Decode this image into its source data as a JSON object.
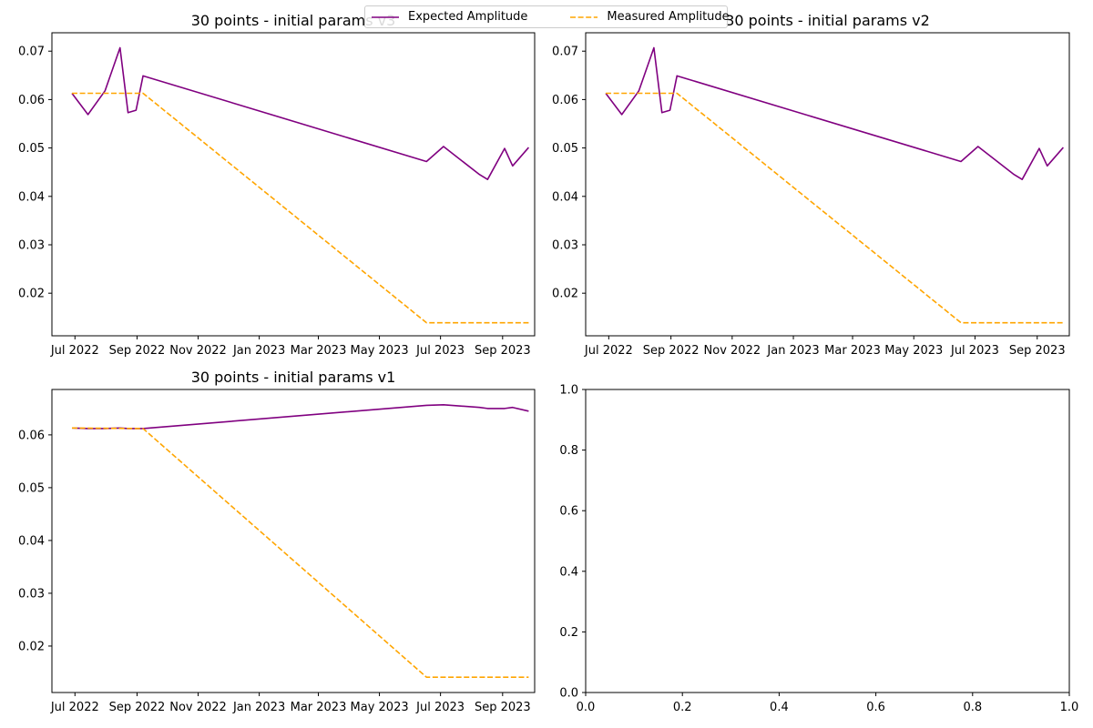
{
  "legend": {
    "expected_label": "Expected Amplitude",
    "measured_label": "Measured Amplitude"
  },
  "colors": {
    "expected": "#800080",
    "measured": "#ffa500"
  },
  "chart_data": [
    {
      "type": "line",
      "title": "30 points - initial params v3",
      "x_type": "date",
      "xlim": [
        "2022-06-08",
        "2023-10-03"
      ],
      "ylim": [
        0.0112,
        0.0738
      ],
      "x_ticks": [
        "2022-07-01",
        "2022-09-01",
        "2022-11-01",
        "2023-01-01",
        "2023-03-01",
        "2023-05-01",
        "2023-07-01",
        "2023-09-01"
      ],
      "x_tick_labels": [
        "Jul 2022",
        "Sep 2022",
        "Nov 2022",
        "Jan 2023",
        "Mar 2023",
        "May 2023",
        "Jul 2023",
        "Sep 2023"
      ],
      "y_ticks": [
        0.02,
        0.03,
        0.04,
        0.05,
        0.06,
        0.07
      ],
      "y_tick_labels": [
        "0.02",
        "0.03",
        "0.04",
        "0.05",
        "0.06",
        "0.07"
      ],
      "grid": false,
      "legend_position": "upper center (figure)",
      "series": [
        {
          "name": "Expected Amplitude",
          "style": "solid",
          "points": [
            [
              "2022-06-28",
              0.0613
            ],
            [
              "2022-07-14",
              0.0569
            ],
            [
              "2022-07-31",
              0.0618
            ],
            [
              "2022-08-15",
              0.0707
            ],
            [
              "2022-08-23",
              0.0573
            ],
            [
              "2022-08-31",
              0.0578
            ],
            [
              "2022-09-07",
              0.0649
            ],
            [
              "2023-06-17",
              0.0472
            ],
            [
              "2023-07-04",
              0.0503
            ],
            [
              "2023-08-09",
              0.0445
            ],
            [
              "2023-08-17",
              0.0435
            ],
            [
              "2023-09-03",
              0.0499
            ],
            [
              "2023-09-11",
              0.0463
            ],
            [
              "2023-09-27",
              0.0501
            ]
          ]
        },
        {
          "name": "Measured Amplitude",
          "style": "dashed",
          "points": [
            [
              "2022-06-28",
              0.0613
            ],
            [
              "2022-09-07",
              0.0613
            ],
            [
              "2023-06-17",
              0.0139
            ],
            [
              "2023-09-27",
              0.0139
            ]
          ]
        }
      ]
    },
    {
      "type": "line",
      "title": "30 points - initial params v2",
      "x_type": "date",
      "xlim": [
        "2022-06-08",
        "2023-10-03"
      ],
      "ylim": [
        0.0112,
        0.0738
      ],
      "x_ticks": [
        "2022-07-01",
        "2022-09-01",
        "2022-11-01",
        "2023-01-01",
        "2023-03-01",
        "2023-05-01",
        "2023-07-01",
        "2023-09-01"
      ],
      "x_tick_labels": [
        "Jul 2022",
        "Sep 2022",
        "Nov 2022",
        "Jan 2023",
        "Mar 2023",
        "May 2023",
        "Jul 2023",
        "Sep 2023"
      ],
      "y_ticks": [
        0.02,
        0.03,
        0.04,
        0.05,
        0.06,
        0.07
      ],
      "y_tick_labels": [
        "0.02",
        "0.03",
        "0.04",
        "0.05",
        "0.06",
        "0.07"
      ],
      "grid": false,
      "series": [
        {
          "name": "Expected Amplitude",
          "style": "solid",
          "points": [
            [
              "2022-06-28",
              0.0613
            ],
            [
              "2022-07-14",
              0.0569
            ],
            [
              "2022-07-31",
              0.0618
            ],
            [
              "2022-08-15",
              0.0707
            ],
            [
              "2022-08-23",
              0.0573
            ],
            [
              "2022-08-31",
              0.0578
            ],
            [
              "2022-09-07",
              0.0649
            ],
            [
              "2023-06-17",
              0.0472
            ],
            [
              "2023-07-04",
              0.0503
            ],
            [
              "2023-08-09",
              0.0445
            ],
            [
              "2023-08-17",
              0.0435
            ],
            [
              "2023-09-03",
              0.0499
            ],
            [
              "2023-09-11",
              0.0463
            ],
            [
              "2023-09-27",
              0.0501
            ]
          ]
        },
        {
          "name": "Measured Amplitude",
          "style": "dashed",
          "points": [
            [
              "2022-06-28",
              0.0613
            ],
            [
              "2022-09-07",
              0.0613
            ],
            [
              "2023-06-17",
              0.0139
            ],
            [
              "2023-09-27",
              0.0139
            ]
          ]
        }
      ]
    },
    {
      "type": "line",
      "title": "30 points - initial params v1",
      "x_type": "date",
      "xlim": [
        "2022-06-08",
        "2023-10-03"
      ],
      "ylim": [
        0.0112,
        0.0686
      ],
      "x_ticks": [
        "2022-07-01",
        "2022-09-01",
        "2022-11-01",
        "2023-01-01",
        "2023-03-01",
        "2023-05-01",
        "2023-07-01",
        "2023-09-01"
      ],
      "x_tick_labels": [
        "Jul 2022",
        "Sep 2022",
        "Nov 2022",
        "Jan 2023",
        "Mar 2023",
        "May 2023",
        "Jul 2023",
        "Sep 2023"
      ],
      "y_ticks": [
        0.02,
        0.03,
        0.04,
        0.05,
        0.06
      ],
      "y_tick_labels": [
        "0.02",
        "0.03",
        "0.04",
        "0.05",
        "0.06"
      ],
      "grid": false,
      "series": [
        {
          "name": "Expected Amplitude",
          "style": "solid",
          "points": [
            [
              "2022-06-28",
              0.0613
            ],
            [
              "2022-07-14",
              0.0612
            ],
            [
              "2022-07-31",
              0.0612
            ],
            [
              "2022-08-15",
              0.0613
            ],
            [
              "2022-08-23",
              0.0612
            ],
            [
              "2022-08-31",
              0.0612
            ],
            [
              "2022-09-07",
              0.0612
            ],
            [
              "2023-06-17",
              0.0656
            ],
            [
              "2023-07-04",
              0.0657
            ],
            [
              "2023-08-09",
              0.0652
            ],
            [
              "2023-08-17",
              0.065
            ],
            [
              "2023-09-03",
              0.065
            ],
            [
              "2023-09-11",
              0.0652
            ],
            [
              "2023-09-27",
              0.0645
            ]
          ]
        },
        {
          "name": "Measured Amplitude",
          "style": "dashed",
          "points": [
            [
              "2022-06-28",
              0.0613
            ],
            [
              "2022-09-07",
              0.0612
            ],
            [
              "2023-06-17",
              0.0141
            ],
            [
              "2023-09-27",
              0.0141
            ]
          ]
        }
      ]
    },
    {
      "type": "line",
      "title": "",
      "x_type": "number",
      "xlim": [
        0,
        1
      ],
      "ylim": [
        0,
        1
      ],
      "x_ticks": [
        0,
        0.2,
        0.4,
        0.6,
        0.8,
        1.0
      ],
      "x_tick_labels": [
        "0.0",
        "0.2",
        "0.4",
        "0.6",
        "0.8",
        "1.0"
      ],
      "y_ticks": [
        0,
        0.2,
        0.4,
        0.6,
        0.8,
        1.0
      ],
      "y_tick_labels": [
        "0.0",
        "0.2",
        "0.4",
        "0.6",
        "0.8",
        "1.0"
      ],
      "grid": false,
      "series": []
    }
  ]
}
